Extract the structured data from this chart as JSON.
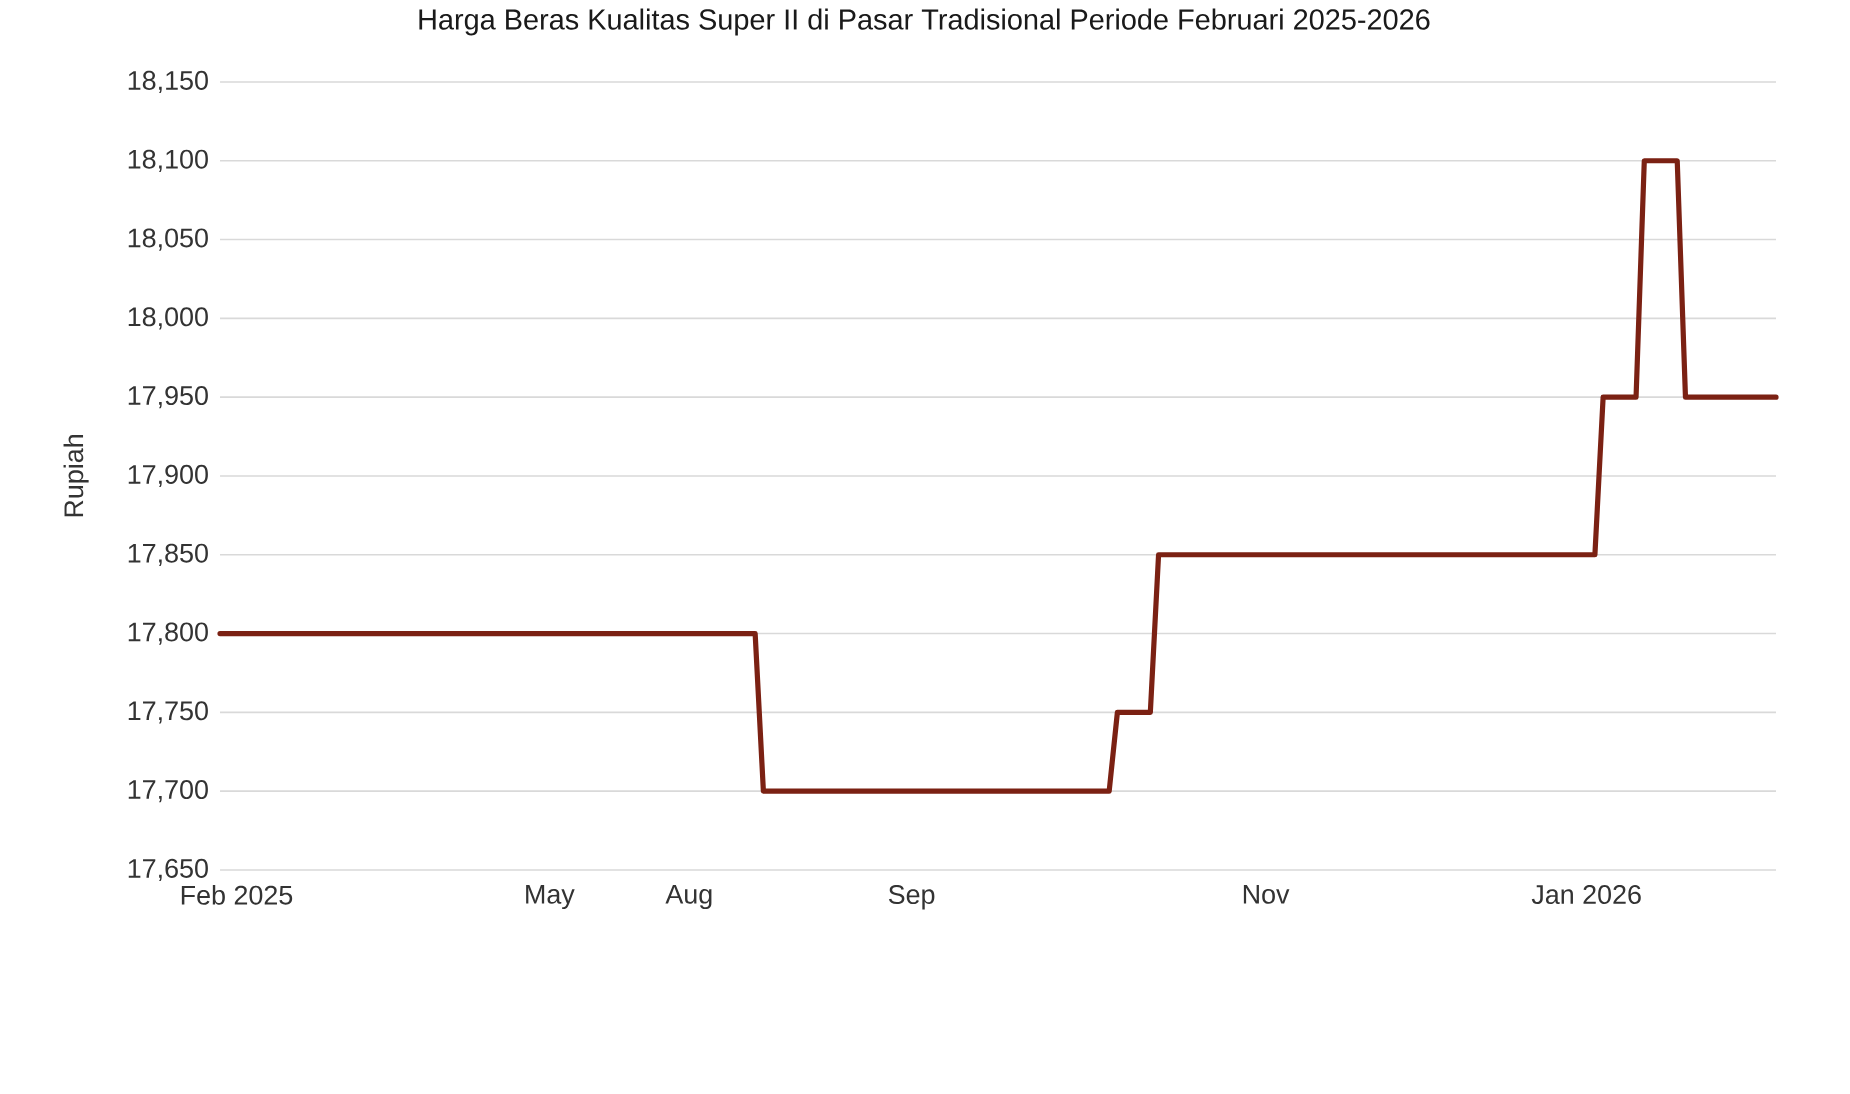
{
  "chart_data": {
    "type": "line",
    "title": "Harga Beras Kualitas Super II di Pasar Tradisional Periode Februari 2025-2026",
    "ylabel": "Rupiah",
    "categories": [
      null,
      null,
      "Feb 2025",
      null,
      null,
      null,
      null,
      null,
      null,
      null,
      null,
      null,
      null,
      null,
      null,
      null,
      null,
      null,
      null,
      null,
      null,
      null,
      null,
      null,
      null,
      null,
      null,
      null,
      null,
      null,
      null,
      null,
      null,
      null,
      null,
      null,
      null,
      null,
      null,
      null,
      "May",
      null,
      null,
      null,
      null,
      null,
      null,
      null,
      null,
      null,
      null,
      null,
      null,
      null,
      null,
      null,
      null,
      "Aug",
      null,
      null,
      null,
      null,
      null,
      null,
      null,
      null,
      null,
      null,
      null,
      null,
      null,
      null,
      null,
      null,
      null,
      null,
      null,
      null,
      null,
      null,
      null,
      null,
      null,
      null,
      "Sep",
      null,
      null,
      null,
      null,
      null,
      null,
      null,
      null,
      null,
      null,
      null,
      null,
      null,
      null,
      null,
      null,
      null,
      null,
      null,
      null,
      null,
      null,
      null,
      null,
      null,
      null,
      null,
      null,
      null,
      null,
      null,
      null,
      null,
      null,
      null,
      null,
      null,
      null,
      null,
      null,
      null,
      null,
      "Nov",
      null,
      null,
      null,
      null,
      null,
      null,
      null,
      null,
      null,
      null,
      null,
      null,
      null,
      null,
      null,
      null,
      null,
      null,
      null,
      null,
      null,
      null,
      null,
      null,
      null,
      null,
      null,
      null,
      null,
      null,
      null,
      null,
      null,
      null,
      null,
      null,
      null,
      null,
      "Jan 2026",
      null,
      null,
      null,
      null,
      null,
      null,
      null,
      null,
      null,
      null,
      null,
      null,
      null,
      null,
      null,
      null,
      null,
      null,
      null,
      null,
      null,
      null,
      null
    ],
    "color": "#7b2113",
    "values": [
      17800,
      17800,
      17800,
      17800,
      17800,
      17800,
      17800,
      17800,
      17800,
      17800,
      17800,
      17800,
      17800,
      17800,
      17800,
      17800,
      17800,
      17800,
      17800,
      17800,
      17800,
      17800,
      17800,
      17800,
      17800,
      17800,
      17800,
      17800,
      17800,
      17800,
      17800,
      17800,
      17800,
      17800,
      17800,
      17800,
      17800,
      17800,
      17800,
      17800,
      17800,
      17800,
      17800,
      17800,
      17800,
      17800,
      17800,
      17800,
      17800,
      17800,
      17800,
      17800,
      17800,
      17800,
      17800,
      17800,
      17800,
      17800,
      17800,
      17800,
      17800,
      17800,
      17800,
      17800,
      17800,
      17800,
      17700,
      17700,
      17700,
      17700,
      17700,
      17700,
      17700,
      17700,
      17700,
      17700,
      17700,
      17700,
      17700,
      17700,
      17700,
      17700,
      17700,
      17700,
      17700,
      17700,
      17700,
      17700,
      17700,
      17700,
      17700,
      17700,
      17700,
      17700,
      17700,
      17700,
      17700,
      17700,
      17700,
      17700,
      17700,
      17700,
      17700,
      17700,
      17700,
      17700,
      17700,
      17700,
      17700,
      17750,
      17750,
      17750,
      17750,
      17750,
      17850,
      17850,
      17850,
      17850,
      17850,
      17850,
      17850,
      17850,
      17850,
      17850,
      17850,
      17850,
      17850,
      17850,
      17850,
      17850,
      17850,
      17850,
      17850,
      17850,
      17850,
      17850,
      17850,
      17850,
      17850,
      17850,
      17850,
      17850,
      17850,
      17850,
      17850,
      17850,
      17850,
      17850,
      17850,
      17850,
      17850,
      17850,
      17850,
      17850,
      17850,
      17850,
      17850,
      17850,
      17850,
      17850,
      17850,
      17850,
      17850,
      17850,
      17850,
      17850,
      17850,
      17850,
      17950,
      17950,
      17950,
      17950,
      17950,
      18100,
      18100,
      18100,
      18100,
      18100,
      17950,
      17950,
      17950,
      17950,
      17950,
      17950,
      17950,
      17950,
      17950,
      17950,
      17950,
      17950
    ],
    "ylim": [
      17650,
      18150
    ],
    "yticks": [
      {
        "value": 17650,
        "label": "17,650"
      },
      {
        "value": 17700,
        "label": "17,700"
      },
      {
        "value": 17750,
        "label": "17,750"
      },
      {
        "value": 17800,
        "label": "17,800"
      },
      {
        "value": 17850,
        "label": "17,850"
      },
      {
        "value": 17900,
        "label": "17,900"
      },
      {
        "value": 17950,
        "label": "17,950"
      },
      {
        "value": 18000,
        "label": "18,000"
      },
      {
        "value": 18050,
        "label": "18,050"
      },
      {
        "value": 18100,
        "label": "18,100"
      },
      {
        "value": 18150,
        "label": "18,150"
      }
    ],
    "grid": "y"
  }
}
